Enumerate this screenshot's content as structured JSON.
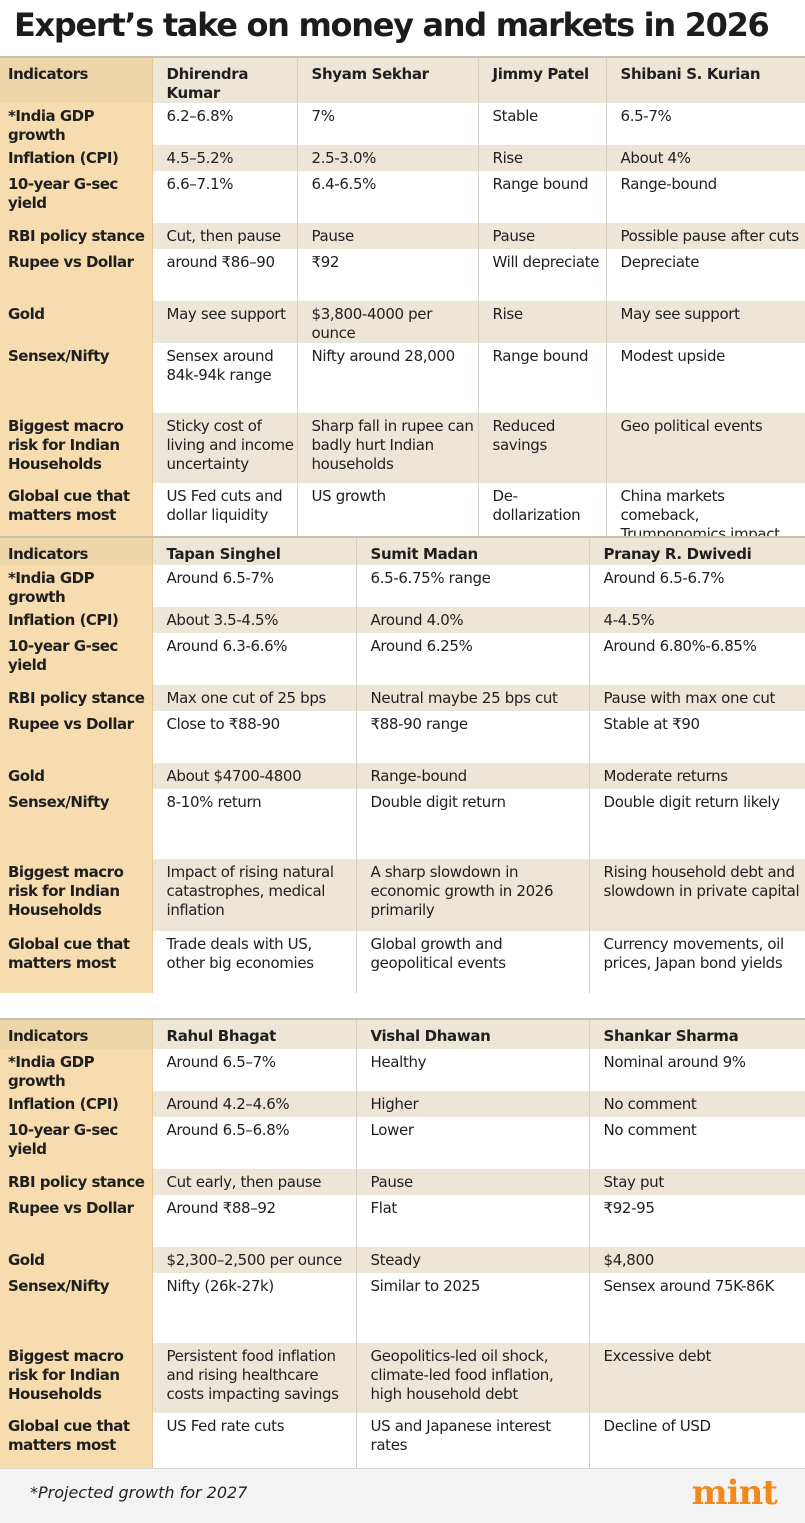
{
  "title": "Expert’s take on money and markets in 2026",
  "indicators": [
    "*India GDP growth",
    "Inflation (CPI)",
    "10-year G-sec yield",
    "RBI policy stance",
    "Rupee vs Dollar",
    "Gold",
    "Sensex/Nifty",
    "Biggest macro risk for Indian Households",
    "Global cue that matters most"
  ],
  "header_label": "Indicators",
  "tables": [
    {
      "experts": [
        "Dhirendra Kumar",
        "Shyam Sekhar",
        "Jimmy Patel",
        "Shibani S. Kurian"
      ],
      "rows": [
        [
          "6.2–6.8%",
          "7%",
          "Stable",
          " 6.5-7%"
        ],
        [
          "4.5–5.2%",
          "2.5-3.0%",
          "Rise",
          "About 4%"
        ],
        [
          "6.6–7.1%",
          "6.4-6.5%",
          "Range bound",
          "Range-bound"
        ],
        [
          "Cut, then pause",
          "Pause",
          "Pause",
          "Possible pause after cuts"
        ],
        [
          "around ₹86–90",
          "₹92",
          "Will depreciate",
          "Depreciate"
        ],
        [
          "May see support",
          "$3,800-4000 per ounce",
          "Rise",
          "May see support"
        ],
        [
          "Sensex around 84k-94k range",
          "Nifty around 28,000",
          "Range bound",
          "Modest upside"
        ],
        [
          "Sticky cost of living and income uncertainty",
          "Sharp fall in rupee can badly hurt Indian households",
          "Reduced savings",
          "Geo political events"
        ],
        [
          "US Fed cuts and dollar liquidity",
          "US growth",
          "De-dollarization",
          "China markets comeback, Trumponomics impact"
        ]
      ]
    },
    {
      "experts": [
        "Tapan Singhel",
        "Sumit Madan",
        "Pranay R. Dwivedi"
      ],
      "rows": [
        [
          "Around 6.5-7%",
          "6.5-6.75% range",
          "Around 6.5-6.7%"
        ],
        [
          "About 3.5-4.5%",
          "Around 4.0%",
          "4-4.5%"
        ],
        [
          "Around 6.3-6.6%",
          "Around 6.25%",
          "Around 6.80%-6.85%"
        ],
        [
          "Max one cut of 25 bps",
          "Neutral maybe 25 bps cut",
          "Pause with max one cut"
        ],
        [
          "Close to ₹88-90",
          "₹88-90 range",
          "Stable at ₹90"
        ],
        [
          "About $4700-4800",
          "Range-bound",
          "Moderate returns"
        ],
        [
          "8-10% return",
          "Double digit return",
          "Double digit return likely"
        ],
        [
          "Impact of rising natural catastrophes, medical inflation",
          "A sharp slowdown in economic growth in 2026 primarily",
          "Rising household debt and slowdown in private capital"
        ],
        [
          "Trade deals with US, other big economies",
          "Global growth and geopolitical events",
          "Currency movements, oil prices, Japan bond yields"
        ]
      ]
    },
    {
      "experts": [
        "Rahul Bhagat",
        "Vishal Dhawan",
        "Shankar Sharma"
      ],
      "rows": [
        [
          "Around 6.5–7%",
          "Healthy",
          "Nominal around 9%"
        ],
        [
          "Around 4.2–4.6%",
          "Higher",
          "No comment"
        ],
        [
          "Around 6.5–6.8%",
          "Lower",
          "No comment"
        ],
        [
          "Cut early, then pause",
          "Pause",
          "Stay put"
        ],
        [
          "Around ₹88–92",
          "Flat",
          "₹92-95"
        ],
        [
          "$2,300–2,500 per ounce",
          "Steady",
          "$4,800"
        ],
        [
          "Nifty (26k-27k)",
          "Similar to 2025",
          "Sensex around 75K-86K"
        ],
        [
          "Persistent food inflation and rising healthcare costs impacting savings",
          "Geopolitics-led oil shock, climate-led food inflation, high household debt",
          "Excessive debt"
        ],
        [
          "US Fed rate cuts",
          "US and Japanese interest rates",
          "Decline of USD"
        ]
      ]
    }
  ],
  "footnote": "*Projected growth for 2027",
  "logo": "mint",
  "colors": {
    "indicator_column": "#f6dcae",
    "shaded_row": "#ede6d6",
    "logo": "#f08a1c"
  }
}
